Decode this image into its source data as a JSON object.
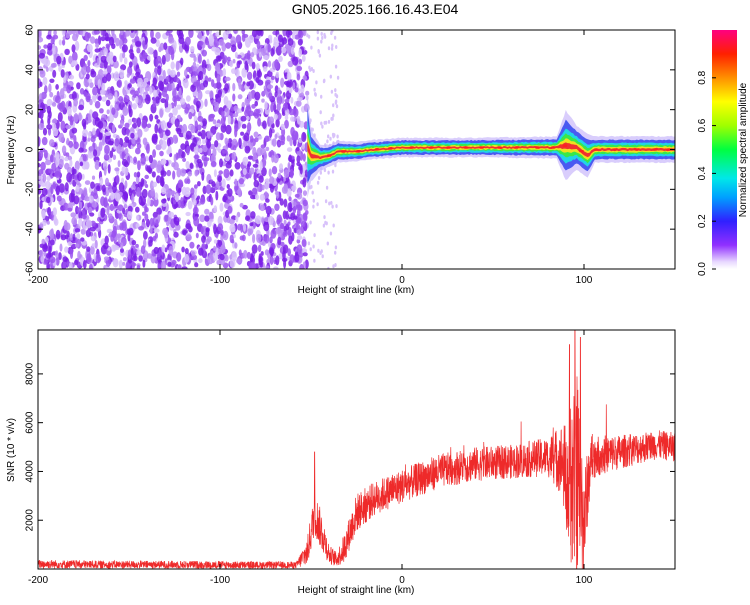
{
  "title": "GN05.2025.166.16.43.E04",
  "colors": {
    "axis": "#000000",
    "snr_line": "#ee2a2a",
    "spec_speckle": [
      "#7a1ee6",
      "#9b53f0",
      "#b98af4",
      "#d8c2fa"
    ],
    "ridge": [
      "#3a4cf0",
      "#22d3e8",
      "#39e84a",
      "#f0e020",
      "#f03030"
    ]
  },
  "chart_data": [
    {
      "type": "heatmap",
      "name": "spectrogram",
      "xlabel": "Height of straight line (km)",
      "ylabel": "Frequency (Hz)",
      "xlim": [
        -200,
        150
      ],
      "ylim": [
        -60,
        60
      ],
      "xticks": [
        -200,
        -100,
        0,
        100
      ],
      "yticks": [
        -60,
        -40,
        -20,
        0,
        20,
        40,
        60
      ],
      "noise_region_x": [
        -200,
        -52
      ],
      "ridge": [
        {
          "x": -52,
          "y": 2,
          "halfwidth": 12
        },
        {
          "x": -50,
          "y": -3,
          "halfwidth": 6
        },
        {
          "x": -45,
          "y": -4,
          "halfwidth": 3
        },
        {
          "x": -40,
          "y": -3,
          "halfwidth": 2.5
        },
        {
          "x": -35,
          "y": -1,
          "halfwidth": 2.5
        },
        {
          "x": -25,
          "y": -1,
          "halfwidth": 2.2
        },
        {
          "x": -15,
          "y": 0,
          "halfwidth": 2.2
        },
        {
          "x": 0,
          "y": 1,
          "halfwidth": 2.2
        },
        {
          "x": 40,
          "y": 1,
          "halfwidth": 2.2
        },
        {
          "x": 85,
          "y": 1,
          "halfwidth": 2.5
        },
        {
          "x": 90,
          "y": 2,
          "halfwidth": 8
        },
        {
          "x": 96,
          "y": 1,
          "halfwidth": 5
        },
        {
          "x": 102,
          "y": -3,
          "halfwidth": 5
        },
        {
          "x": 106,
          "y": 0,
          "halfwidth": 3
        },
        {
          "x": 150,
          "y": 0,
          "halfwidth": 3
        }
      ],
      "colorbar": {
        "label": "Normalized spectral amplitude",
        "range": [
          0,
          1
        ],
        "ticks": [
          0.0,
          0.2,
          0.4,
          0.6,
          0.8
        ],
        "tick_labels": [
          "0.0",
          "0.2",
          "0.4",
          "0.6",
          "0.8"
        ],
        "stops": [
          {
            "v": 0.0,
            "c": "#ffffff"
          },
          {
            "v": 0.03,
            "c": "#e8d8ff"
          },
          {
            "v": 0.1,
            "c": "#9030ff"
          },
          {
            "v": 0.2,
            "c": "#3020ff"
          },
          {
            "v": 0.3,
            "c": "#00a0ff"
          },
          {
            "v": 0.38,
            "c": "#00e8e8"
          },
          {
            "v": 0.5,
            "c": "#00ff40"
          },
          {
            "v": 0.6,
            "c": "#a0ff00"
          },
          {
            "v": 0.7,
            "c": "#ffff00"
          },
          {
            "v": 0.8,
            "c": "#ff9000"
          },
          {
            "v": 0.9,
            "c": "#ff2000"
          },
          {
            "v": 1.0,
            "c": "#ff0080"
          }
        ]
      }
    },
    {
      "type": "line",
      "name": "snr",
      "xlabel": "Height of straight line (km)",
      "ylabel": "SNR (10 * v/v)",
      "xlim": [
        -200,
        150
      ],
      "ylim": [
        0,
        9800
      ],
      "xticks": [
        -200,
        -100,
        0,
        100
      ],
      "yticks": [
        2000,
        4000,
        6000,
        8000
      ],
      "envelope": [
        {
          "x": -200,
          "y": 200,
          "noise": 180
        },
        {
          "x": -160,
          "y": 180,
          "noise": 160
        },
        {
          "x": -120,
          "y": 180,
          "noise": 160
        },
        {
          "x": -80,
          "y": 160,
          "noise": 150
        },
        {
          "x": -58,
          "y": 160,
          "noise": 140
        },
        {
          "x": -52,
          "y": 700,
          "noise": 600
        },
        {
          "x": -48,
          "y": 2300,
          "noise": 900
        },
        {
          "x": -44,
          "y": 1500,
          "noise": 800
        },
        {
          "x": -40,
          "y": 600,
          "noise": 400
        },
        {
          "x": -36,
          "y": 400,
          "noise": 300
        },
        {
          "x": -32,
          "y": 800,
          "noise": 600
        },
        {
          "x": -25,
          "y": 2300,
          "noise": 800
        },
        {
          "x": -15,
          "y": 2900,
          "noise": 700
        },
        {
          "x": 0,
          "y": 3400,
          "noise": 700
        },
        {
          "x": 20,
          "y": 4000,
          "noise": 700
        },
        {
          "x": 40,
          "y": 4300,
          "noise": 700
        },
        {
          "x": 60,
          "y": 4400,
          "noise": 700
        },
        {
          "x": 80,
          "y": 4600,
          "noise": 800
        },
        {
          "x": 88,
          "y": 4500,
          "noise": 1500
        },
        {
          "x": 92,
          "y": 3000,
          "noise": 3000
        },
        {
          "x": 96,
          "y": 4000,
          "noise": 4500
        },
        {
          "x": 100,
          "y": 2000,
          "noise": 2200
        },
        {
          "x": 104,
          "y": 4600,
          "noise": 900
        },
        {
          "x": 120,
          "y": 4800,
          "noise": 700
        },
        {
          "x": 140,
          "y": 5100,
          "noise": 600
        },
        {
          "x": 150,
          "y": 5000,
          "noise": 600
        }
      ],
      "peaks": [
        {
          "x": -48,
          "y": 4800
        },
        {
          "x": 95,
          "y": 9800
        },
        {
          "x": 98,
          "y": 9500
        },
        {
          "x": 92,
          "y": 9200
        }
      ]
    }
  ]
}
